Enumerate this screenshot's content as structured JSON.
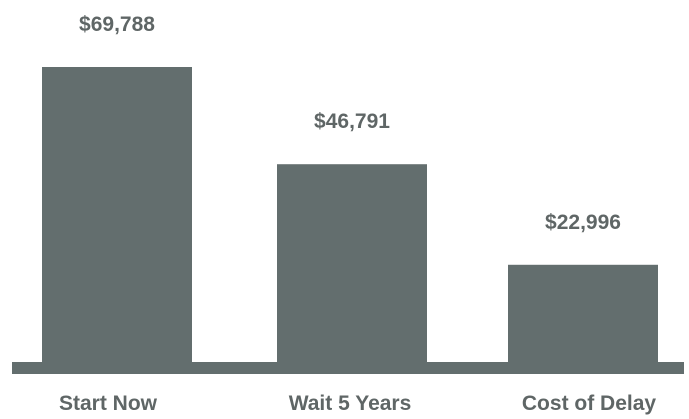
{
  "colors": {
    "bar": "#636e6e",
    "text": "#5f6666",
    "baseline": "#636e6e",
    "background": "#ffffff"
  },
  "chart_data": {
    "type": "bar",
    "categories": [
      "Start Now",
      "Wait 5 Years",
      "Cost of Delay"
    ],
    "values": [
      69788,
      46791,
      22996
    ],
    "value_labels": [
      "$69,788",
      "$46,791",
      "$22,996"
    ],
    "title": "",
    "xlabel": "",
    "ylabel": "",
    "ylim": [
      0,
      69788
    ],
    "grid": false,
    "legend": "none"
  }
}
